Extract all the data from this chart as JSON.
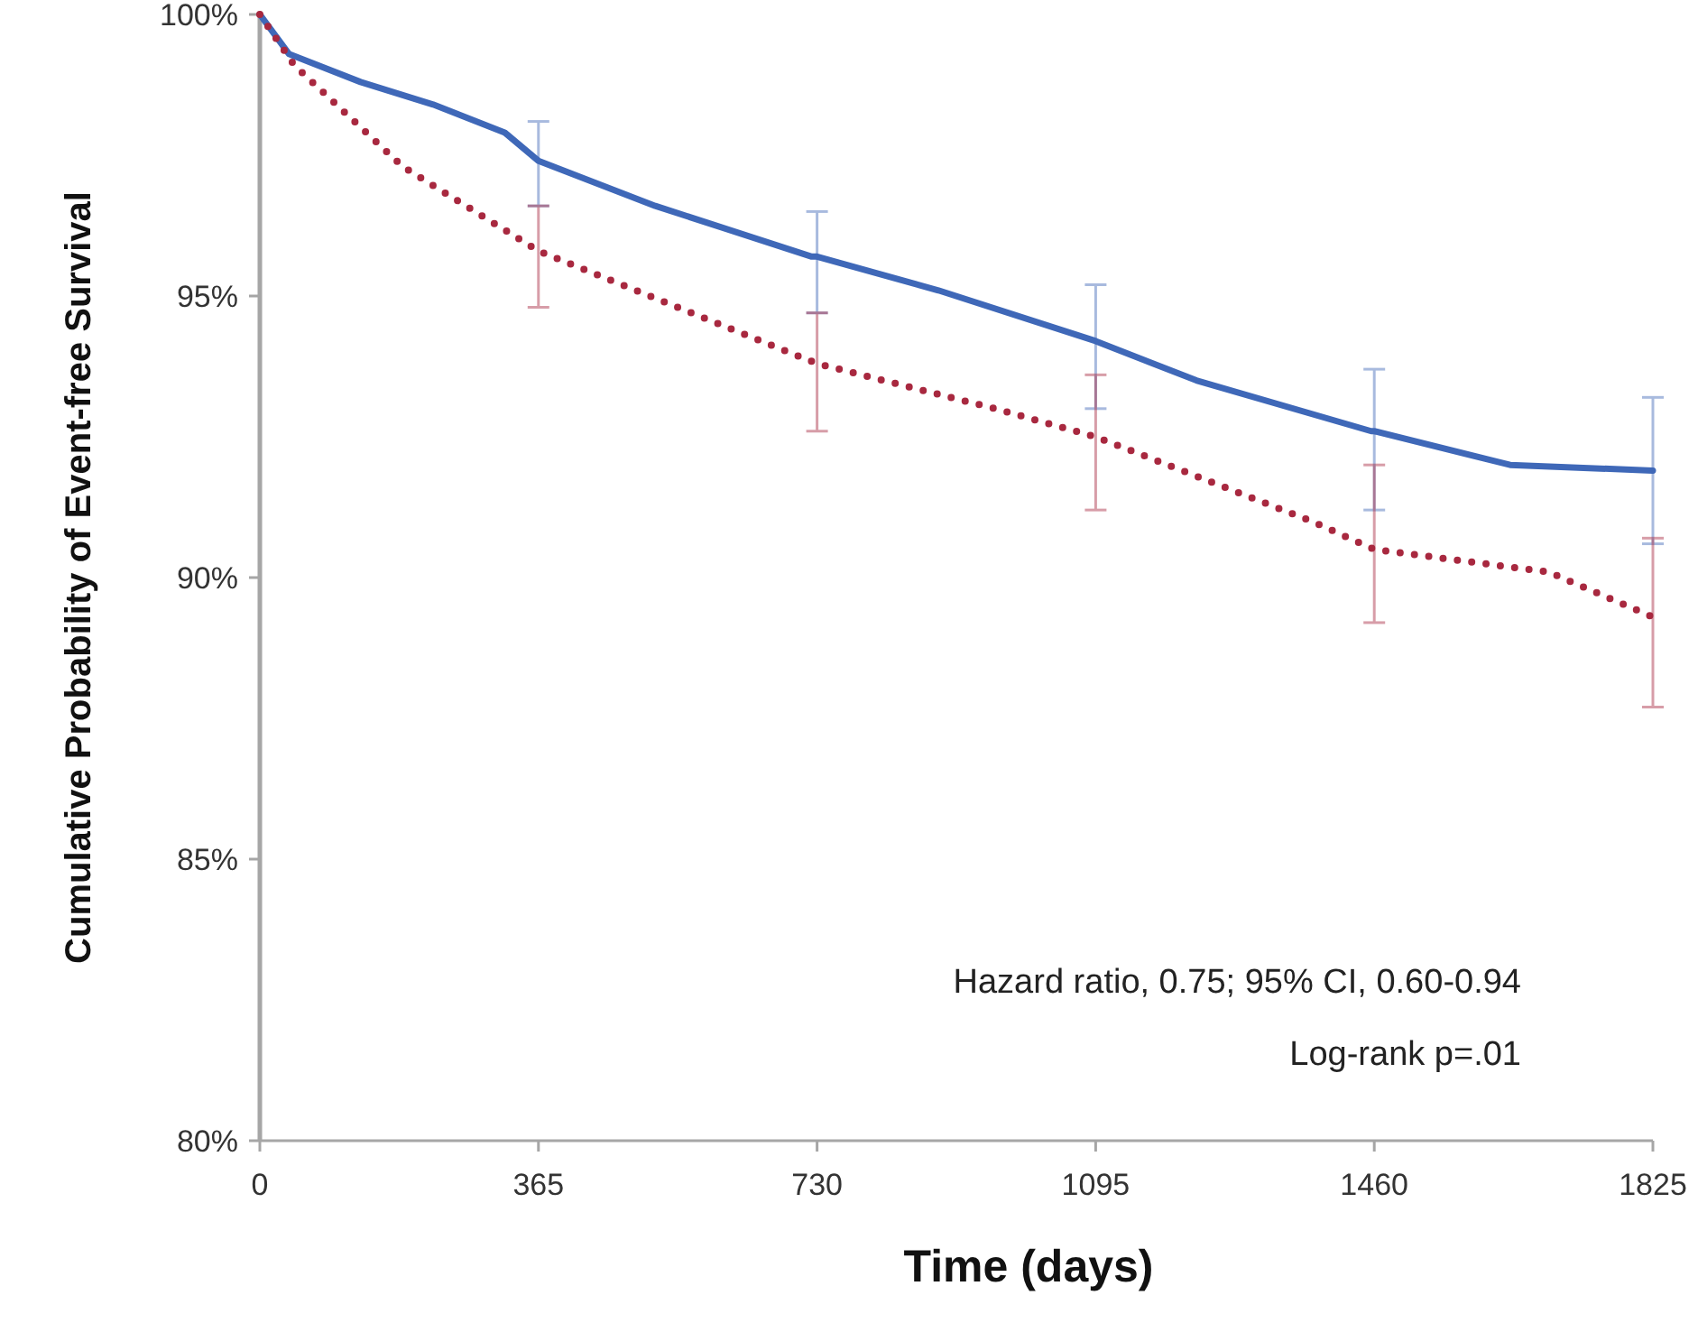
{
  "chart_data": {
    "type": "line",
    "xlabel": "Time (days)",
    "ylabel": "Cumulative Probability of Event-free Survival",
    "xlim": [
      0,
      1825
    ],
    "xticks": [
      0,
      365,
      730,
      1095,
      1460,
      1825
    ],
    "ylim": [
      80,
      100
    ],
    "yticks": [
      {
        "value": 80,
        "label": "80%"
      },
      {
        "value": 85,
        "label": "85%"
      },
      {
        "value": 90,
        "label": "90%"
      },
      {
        "value": 95,
        "label": "95%"
      },
      {
        "value": 100,
        "label": "100%"
      }
    ],
    "grid": false,
    "marker": "none",
    "series": [
      {
        "color": "#3f68b8",
        "line_style": "solid",
        "x": [
          0,
          38,
          132,
          227,
          321,
          365,
          518,
          723,
          730,
          889,
          1095,
          1227,
          1456,
          1460,
          1638,
          1825
        ],
        "values": [
          100,
          99.3,
          98.8,
          98.4,
          97.9,
          97.4,
          96.6,
          95.7,
          95.7,
          95.1,
          94.2,
          93.5,
          92.6,
          92.6,
          92.0,
          91.9
        ],
        "errors": [
          null,
          null,
          null,
          null,
          null,
          [
            96.6,
            98.1
          ],
          null,
          null,
          [
            94.7,
            96.5
          ],
          null,
          [
            93.0,
            95.2
          ],
          null,
          null,
          [
            91.2,
            93.7
          ],
          null,
          [
            90.6,
            93.2
          ]
        ]
      },
      {
        "color": "#a8283f",
        "line_style": "dotted",
        "x": [
          0,
          45,
          187,
          365,
          730,
          963,
          1095,
          1378,
          1460,
          1688,
          1825
        ],
        "values": [
          100,
          99.1,
          97.3,
          95.8,
          93.8,
          93.0,
          92.5,
          91.0,
          90.5,
          90.1,
          89.3
        ],
        "errors": [
          null,
          null,
          null,
          [
            94.8,
            96.6
          ],
          [
            92.6,
            94.7
          ],
          null,
          [
            91.2,
            93.6
          ],
          null,
          [
            89.2,
            92.0
          ],
          null,
          [
            87.7,
            90.7
          ]
        ]
      }
    ],
    "annotations": [
      "Hazard ratio, 0.75; 95% CI, 0.60-0.94",
      "Log-rank p=.01"
    ]
  }
}
